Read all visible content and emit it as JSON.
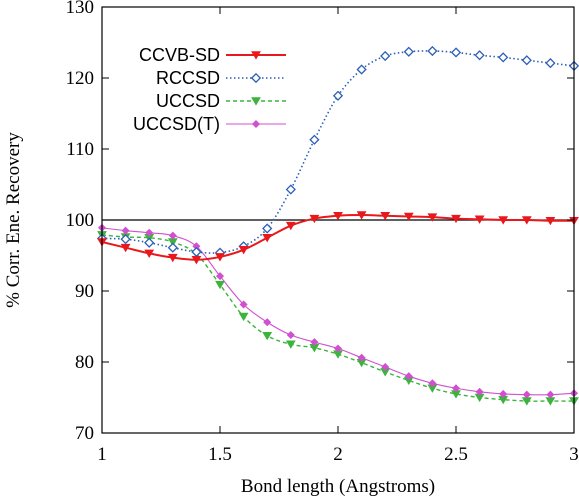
{
  "chart_data": {
    "type": "line",
    "xlabel": "Bond length (Angstroms)",
    "ylabel": "% Corr. Ene. Recovery",
    "xlim": [
      1,
      3
    ],
    "ylim": [
      70,
      130
    ],
    "xticks": [
      1,
      1.5,
      2,
      2.5,
      3
    ],
    "xtick_labels": [
      "1",
      "1.5",
      "2",
      "2.5",
      "3"
    ],
    "yticks": [
      70,
      80,
      90,
      100,
      110,
      120,
      130
    ],
    "ytick_labels": [
      "70",
      "80",
      "90",
      "100",
      "110",
      "120",
      "130"
    ],
    "grid": false,
    "legend_position": "top-left",
    "reference_line": {
      "y": 100,
      "color": "#000000"
    },
    "x": [
      1.0,
      1.1,
      1.2,
      1.3,
      1.4,
      1.5,
      1.6,
      1.7,
      1.8,
      1.9,
      2.0,
      2.1,
      2.2,
      2.3,
      2.4,
      2.5,
      2.6,
      2.7,
      2.8,
      2.9,
      3.0
    ],
    "series": [
      {
        "name": "CCVB-SD",
        "color": "#e8191c",
        "line_style": "solid",
        "marker": "triangle-down",
        "values": [
          96.9,
          96.1,
          95.3,
          94.7,
          94.4,
          94.8,
          95.8,
          97.5,
          99.2,
          100.2,
          100.6,
          100.7,
          100.6,
          100.5,
          100.4,
          100.2,
          100.1,
          100.0,
          100.0,
          99.9,
          99.9
        ]
      },
      {
        "name": "RCCSD",
        "color": "#2b5fb8",
        "line_style": "dotted",
        "marker": "diamond",
        "values": [
          97.4,
          97.3,
          96.8,
          96.1,
          95.5,
          95.4,
          96.3,
          98.8,
          104.3,
          111.3,
          117.5,
          121.2,
          123.1,
          123.7,
          123.8,
          123.6,
          123.2,
          122.9,
          122.5,
          122.1,
          121.7
        ]
      },
      {
        "name": "UCCSD",
        "color": "#3cb33c",
        "line_style": "dashed",
        "marker": "triangle-down-filled",
        "values": [
          97.9,
          97.6,
          97.5,
          96.9,
          95.2,
          90.9,
          86.4,
          83.7,
          82.5,
          82.0,
          81.1,
          79.9,
          78.6,
          77.4,
          76.3,
          75.5,
          75.0,
          74.7,
          74.5,
          74.5,
          74.5
        ]
      },
      {
        "name": "UCCSD(T)",
        "color": "#d050d0",
        "line_style": "solid-thin",
        "marker": "diamond-filled",
        "values": [
          98.9,
          98.5,
          98.2,
          97.8,
          96.3,
          92.1,
          88.1,
          85.6,
          83.8,
          82.8,
          81.9,
          80.6,
          79.3,
          78.0,
          77.0,
          76.3,
          75.8,
          75.5,
          75.4,
          75.4,
          75.6
        ]
      }
    ]
  }
}
